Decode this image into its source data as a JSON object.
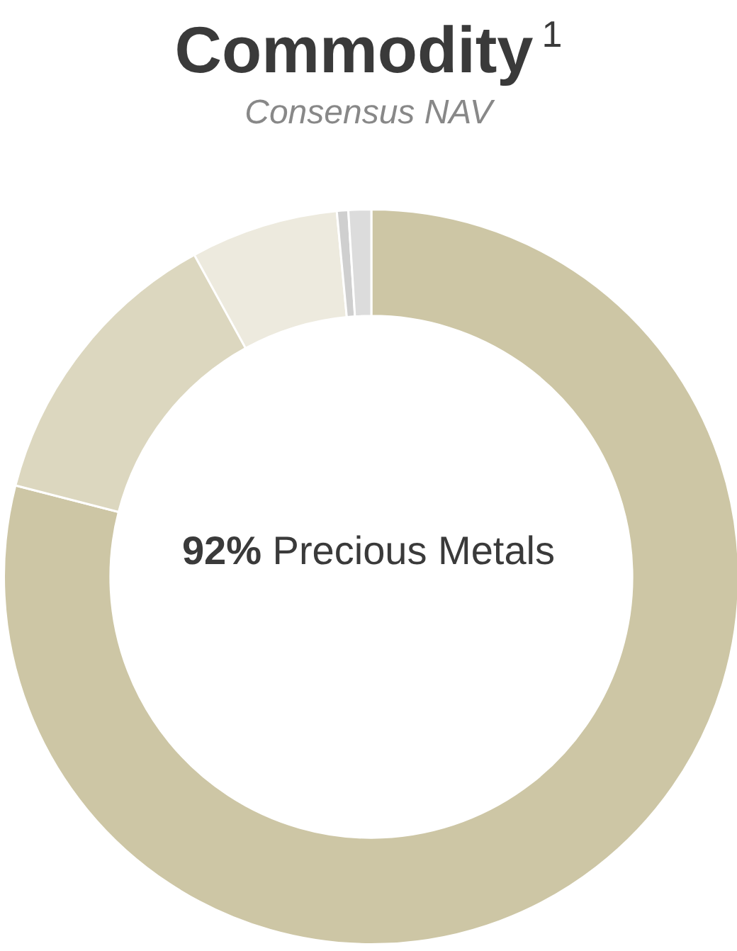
{
  "chart_data": {
    "type": "donut",
    "title": "Commodity$^{1}$",
    "subtitle": "Consensus NAV",
    "categories": [
      null,
      null,
      null,
      null,
      null
    ],
    "values": [
      79,
      13,
      6.5,
      0.5,
      1
    ],
    "colors": [
      "#cdc6a5",
      "#dcd7bf",
      "#edeade",
      "#cfcfcf",
      "#dcdcdc"
    ],
    "annotations": [
      "92% Precious Metals"
    ],
    "legend": false
  }
}
